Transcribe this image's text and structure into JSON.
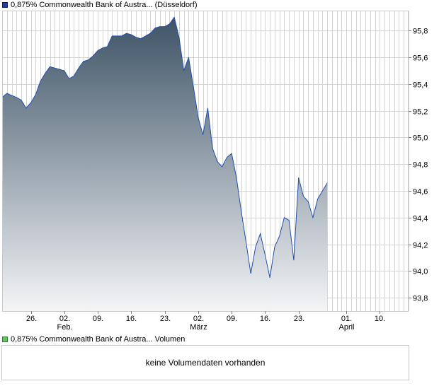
{
  "legend": {
    "price_label": "0,875% Commonwealth Bank of Austra... (Düsseldorf)",
    "volume_label": "0,875% Commonwealth Bank of Austra... Volumen"
  },
  "volume_panel": {
    "message": "keine Volumendaten vorhanden"
  },
  "colors": {
    "line": "#2050b0",
    "fill_top": "#3d5366",
    "fill_bottom": "#f4f5f7",
    "grid": "#d4d4d4",
    "border": "#c8c8c8",
    "legend_price": "#1f3f9a",
    "legend_volume": "#66c266"
  },
  "chart_data": {
    "type": "area",
    "title": "",
    "xlabel": "",
    "ylabel": "",
    "ylim": [
      93.7,
      95.95
    ],
    "y_ticks": [
      93.8,
      94.0,
      94.2,
      94.4,
      94.6,
      94.8,
      95.0,
      95.2,
      95.4,
      95.6,
      95.8
    ],
    "y_tick_labels": [
      "93,8",
      "94,0",
      "94,2",
      "94,4",
      "94,6",
      "94,8",
      "95,0",
      "95,2",
      "95,4",
      "95,6",
      "95,8"
    ],
    "x_ticks": [
      {
        "day": 6,
        "label": "26.",
        "sub": ""
      },
      {
        "day": 13,
        "label": "02.",
        "sub": "Feb."
      },
      {
        "day": 20,
        "label": "09.",
        "sub": ""
      },
      {
        "day": 27,
        "label": "16.",
        "sub": ""
      },
      {
        "day": 34,
        "label": "23.",
        "sub": ""
      },
      {
        "day": 41,
        "label": "02.",
        "sub": "März"
      },
      {
        "day": 48,
        "label": "09.",
        "sub": ""
      },
      {
        "day": 55,
        "label": "16.",
        "sub": ""
      },
      {
        "day": 62,
        "label": "23.",
        "sub": ""
      },
      {
        "day": 72,
        "label": "01.",
        "sub": "April"
      },
      {
        "day": 79,
        "label": "10.",
        "sub": ""
      }
    ],
    "x_range": [
      0,
      85
    ],
    "grid": true,
    "series": [
      {
        "name": "",
        "points": [
          [
            0,
            95.3
          ],
          [
            1,
            95.33
          ],
          [
            3,
            95.3
          ],
          [
            4,
            95.28
          ],
          [
            5,
            95.22
          ],
          [
            6,
            95.26
          ],
          [
            7,
            95.32
          ],
          [
            8,
            95.42
          ],
          [
            9,
            95.48
          ],
          [
            10,
            95.53
          ],
          [
            11,
            95.52
          ],
          [
            12,
            95.51
          ],
          [
            13,
            95.5
          ],
          [
            14,
            95.44
          ],
          [
            15,
            95.46
          ],
          [
            16,
            95.52
          ],
          [
            17,
            95.57
          ],
          [
            18,
            95.58
          ],
          [
            19,
            95.61
          ],
          [
            20,
            95.65
          ],
          [
            21,
            95.67
          ],
          [
            22,
            95.68
          ],
          [
            23,
            95.76
          ],
          [
            24,
            95.76
          ],
          [
            25,
            95.76
          ],
          [
            26,
            95.78
          ],
          [
            27,
            95.77
          ],
          [
            28,
            95.75
          ],
          [
            29,
            95.74
          ],
          [
            30,
            95.76
          ],
          [
            31,
            95.78
          ],
          [
            32,
            95.82
          ],
          [
            33,
            95.83
          ],
          [
            34,
            95.83
          ],
          [
            35,
            95.85
          ],
          [
            36,
            95.9
          ],
          [
            37,
            95.75
          ],
          [
            38,
            95.5
          ],
          [
            39,
            95.6
          ],
          [
            40,
            95.38
          ],
          [
            41,
            95.15
          ],
          [
            42,
            95.02
          ],
          [
            43,
            95.22
          ],
          [
            44,
            94.92
          ],
          [
            45,
            94.82
          ],
          [
            46,
            94.78
          ],
          [
            47,
            94.85
          ],
          [
            48,
            94.88
          ],
          [
            49,
            94.7
          ],
          [
            50,
            94.45
          ],
          [
            51,
            94.22
          ],
          [
            52,
            93.98
          ],
          [
            53,
            94.18
          ],
          [
            54,
            94.28
          ],
          [
            55,
            94.12
          ],
          [
            56,
            93.95
          ],
          [
            57,
            94.18
          ],
          [
            58,
            94.26
          ],
          [
            59,
            94.4
          ],
          [
            60,
            94.38
          ],
          [
            61,
            94.08
          ],
          [
            62,
            94.7
          ],
          [
            63,
            94.56
          ],
          [
            64,
            94.52
          ],
          [
            65,
            94.4
          ],
          [
            66,
            94.54
          ],
          [
            67,
            94.6
          ],
          [
            68,
            94.66
          ]
        ]
      }
    ]
  }
}
